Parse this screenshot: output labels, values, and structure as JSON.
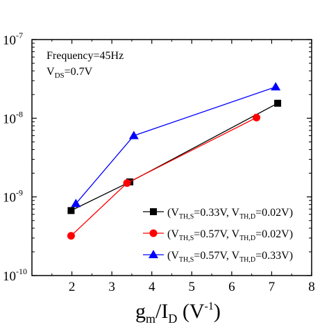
{
  "chart_data": {
    "type": "line",
    "x_scale": "linear",
    "y_scale": "log",
    "xlim": [
      1,
      8
    ],
    "ylim": [
      1e-10,
      1e-07
    ],
    "x_ticks": [
      {
        "value": 2,
        "label": "2"
      },
      {
        "value": 3,
        "label": "3"
      },
      {
        "value": 4,
        "label": "4"
      },
      {
        "value": 5,
        "label": "5"
      },
      {
        "value": 6,
        "label": "6"
      },
      {
        "value": 7,
        "label": "7"
      },
      {
        "value": 8,
        "label": "8"
      }
    ],
    "y_ticks": [
      {
        "value": 1e-10,
        "mant": "10",
        "exp": "-10"
      },
      {
        "value": 1e-09,
        "mant": "10",
        "exp": "-9"
      },
      {
        "value": 1e-08,
        "mant": "10",
        "exp": "-8"
      },
      {
        "value": 1e-07,
        "mant": "10",
        "exp": "-7"
      }
    ],
    "xlabel": {
      "base": "g",
      "sub1": "m",
      "mid": "/I",
      "sub2": "D",
      "paren_open": " (V",
      "sup": "-1",
      "paren_close": ")"
    },
    "ylabel_visible": "",
    "annotations": {
      "frequency": "Frequency=45Hz",
      "vds_base": "V",
      "vds_sub": "DS",
      "vds_value": "=0.7V"
    },
    "legend_position": "bottom-right",
    "grid": false,
    "series": [
      {
        "marker": "square",
        "color": "#000000",
        "legend": {
          "p1": "(V",
          "s1": "TH,S",
          "p2": "=0.33V, V",
          "s2": "TH,D",
          "p3": "=0.02V)"
        },
        "points": [
          [
            1.98,
            6.7e-10
          ],
          [
            3.45,
            1.55e-09
          ],
          [
            7.15,
            1.55e-08
          ]
        ]
      },
      {
        "marker": "circle",
        "color": "#ff0000",
        "legend": {
          "p1": "(V",
          "s1": "TH,S",
          "p2": "=0.57V, V",
          "s2": "TH,D",
          "p3": "=0.02V)"
        },
        "points": [
          [
            1.98,
            3.2e-10
          ],
          [
            3.38,
            1.5e-09
          ],
          [
            6.62,
            1.02e-08
          ]
        ]
      },
      {
        "marker": "triangle",
        "color": "#0000ff",
        "legend": {
          "p1": "(V",
          "s1": "TH,S",
          "p2": "=0.57V, V",
          "s2": "TH,D",
          "p3": "=0.33V)"
        },
        "points": [
          [
            2.1,
            8.2e-10
          ],
          [
            3.55,
            6e-09
          ],
          [
            7.1,
            2.5e-08
          ]
        ]
      }
    ]
  }
}
